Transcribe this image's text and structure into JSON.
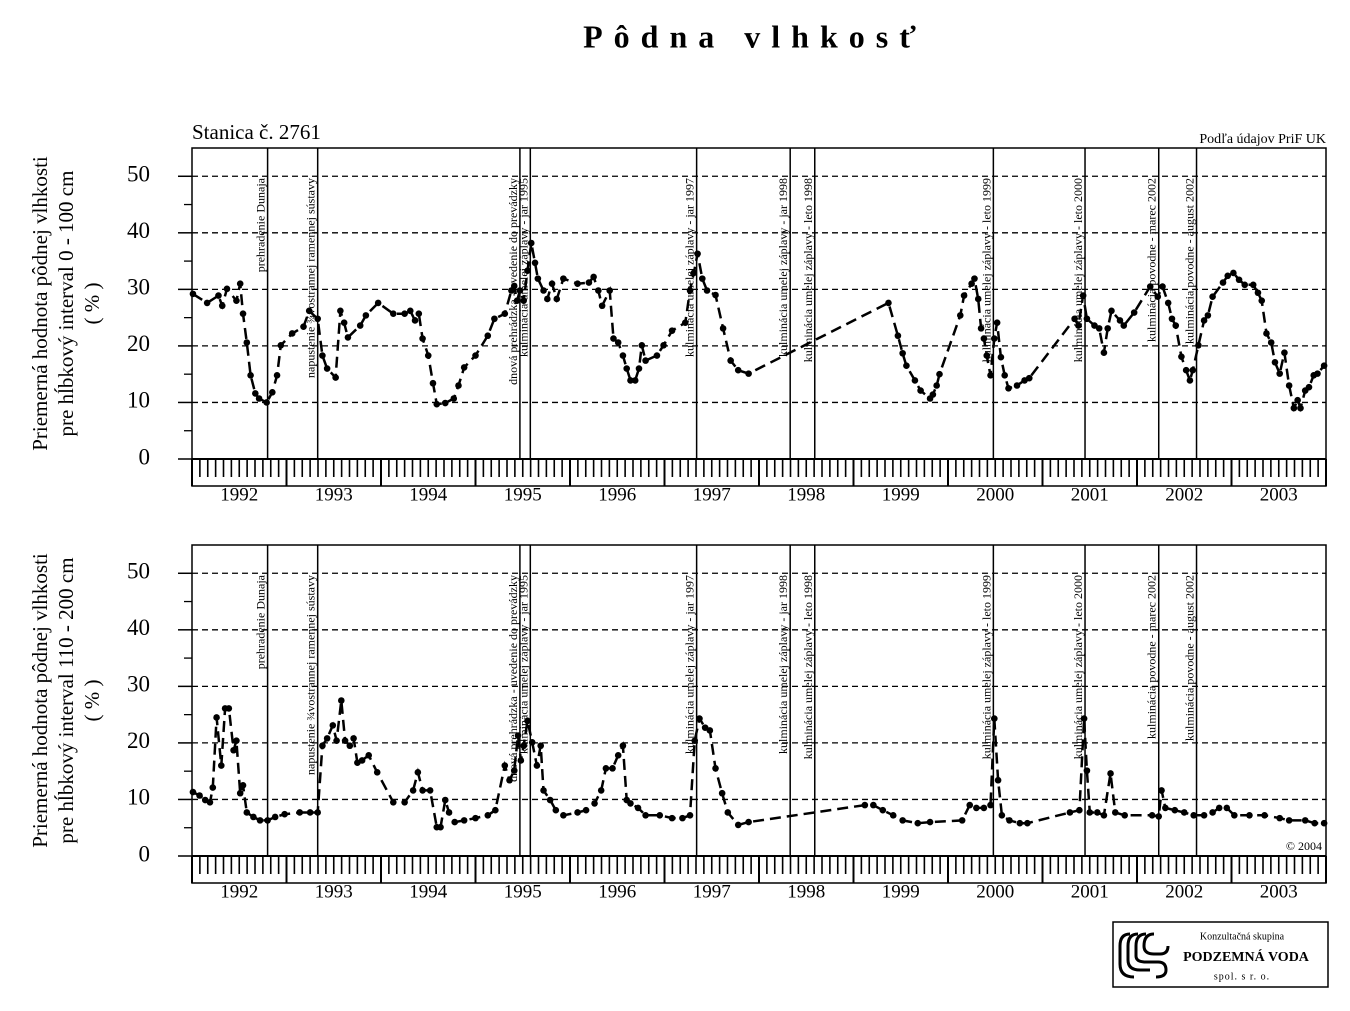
{
  "title": "Pôdna vlhkosť",
  "logo": {
    "line1": "Konzultačná skupina",
    "name": "PODZEMNÁ VODA",
    "line3": "spol. s r. o."
  },
  "chart_data": [
    {
      "type": "line",
      "subtitle": "Stanica č. 2761",
      "source": "Podľa údajov PriF UK",
      "y_label": [
        "Priemerná hodnota pôdnej vlhkosti",
        "pre hĺbkový interval 0 - 100 cm",
        "( % )"
      ],
      "xlim": [
        1992,
        2004
      ],
      "ylim": [
        0,
        55
      ],
      "yticks": [
        0,
        10,
        20,
        30,
        40,
        50
      ],
      "grid": true,
      "xticks": [
        {
          "value": 1992.5,
          "label": "1992"
        },
        {
          "value": 1993.5,
          "label": "1993"
        },
        {
          "value": 1994.5,
          "label": "1994"
        },
        {
          "value": 1995.5,
          "label": "1995"
        },
        {
          "value": 1996.5,
          "label": "1996"
        },
        {
          "value": 1997.5,
          "label": "1997"
        },
        {
          "value": 1998.5,
          "label": "1998"
        },
        {
          "value": 1999.5,
          "label": "1999"
        },
        {
          "value": 2000.5,
          "label": "2000"
        },
        {
          "value": 2001.5,
          "label": "2001"
        },
        {
          "value": 2002.5,
          "label": "2002"
        },
        {
          "value": 2003.5,
          "label": "2003"
        }
      ],
      "color": "#000000",
      "line_style": "dashed",
      "annotations": [
        {
          "x": 1992.8,
          "label": "prehradenie Dunaja"
        },
        {
          "x": 1993.33,
          "label": "napustenie ¾vostrannej ramennej sústavy"
        },
        {
          "x": 1995.47,
          "label": "dnová prehrádzka - uvedenie do prevádzky"
        },
        {
          "x": 1995.58,
          "label": "kulminácia umelej záplavy - jar 1995"
        },
        {
          "x": 1997.34,
          "label": "kulminácia umelej záplavy - jar 1997"
        },
        {
          "x": 1998.33,
          "label": "kulminácia umelej záplavy - jar 1998"
        },
        {
          "x": 1998.59,
          "label": "kulminácia umelej záplavy - leto 1998"
        },
        {
          "x": 2000.48,
          "label": "kulminácia umelej záplavy - leto 1999"
        },
        {
          "x": 2001.45,
          "label": "kulminácia umelej záplavy - leto 2000"
        },
        {
          "x": 2002.23,
          "label": "kulminácia povodne - marec 2002"
        },
        {
          "x": 2002.63,
          "label": "kulminácia povodne - august 2002"
        }
      ],
      "x": [
        1992.01,
        1992.16,
        1992.28,
        1992.32,
        1992.37,
        1992.47,
        1992.51,
        1992.54,
        1992.58,
        1992.62,
        1992.67,
        1992.71,
        1992.79,
        1992.85,
        1992.9,
        1992.94,
        1993.06,
        1993.18,
        1993.24,
        1993.33,
        1993.38,
        1993.43,
        1993.52,
        1993.57,
        1993.61,
        1993.65,
        1993.78,
        1993.84,
        1993.97,
        1994.13,
        1994.25,
        1994.31,
        1994.36,
        1994.4,
        1994.44,
        1994.5,
        1994.55,
        1994.59,
        1994.68,
        1994.77,
        1994.82,
        1994.88,
        1995.0,
        1995.13,
        1995.2,
        1995.31,
        1995.38,
        1995.41,
        1995.44,
        1995.47,
        1995.51,
        1995.55,
        1995.59,
        1995.63,
        1995.66,
        1995.72,
        1995.76,
        1995.81,
        1995.86,
        1995.93,
        1996.08,
        1996.2,
        1996.25,
        1996.3,
        1996.34,
        1996.42,
        1996.46,
        1996.51,
        1996.56,
        1996.6,
        1996.64,
        1996.69,
        1996.73,
        1996.76,
        1996.8,
        1996.92,
        1996.99,
        1997.08,
        1997.22,
        1997.27,
        1997.31,
        1997.35,
        1997.4,
        1997.45,
        1997.54,
        1997.62,
        1997.7,
        1997.78,
        1997.89,
        1999.37,
        1999.47,
        1999.52,
        1999.56,
        1999.65,
        1999.71,
        1999.81,
        1999.84,
        1999.88,
        1999.91,
        2000.13,
        2000.17,
        2000.25,
        2000.28,
        2000.32,
        2000.35,
        2000.38,
        2000.41,
        2000.45,
        2000.49,
        2000.52,
        2000.56,
        2000.6,
        2000.64,
        2000.73,
        2000.81,
        2000.86,
        2001.34,
        2001.38,
        2001.43,
        2001.47,
        2001.55,
        2001.6,
        2001.65,
        2001.69,
        2001.73,
        2001.82,
        2001.86,
        2001.97,
        2002.14,
        2002.22,
        2002.27,
        2002.33,
        2002.37,
        2002.41,
        2002.47,
        2002.52,
        2002.56,
        2002.59,
        2002.65,
        2002.71,
        2002.75,
        2002.8,
        2002.91,
        2002.96,
        2003.02,
        2003.08,
        2003.14,
        2003.23,
        2003.28,
        2003.32,
        2003.37,
        2003.42,
        2003.46,
        2003.51,
        2003.56,
        2003.61,
        2003.66,
        2003.7,
        2003.73,
        2003.78,
        2003.82,
        2003.87,
        2003.91,
        2003.98
      ],
      "values": [
        29.2,
        27.6,
        28.9,
        27.1,
        30.1,
        28.0,
        31.0,
        25.7,
        20.6,
        14.8,
        11.6,
        10.7,
        10.0,
        11.8,
        14.8,
        20.1,
        22.2,
        23.4,
        26.2,
        24.8,
        18.3,
        16.0,
        14.4,
        26.2,
        24.1,
        21.5,
        23.6,
        25.4,
        27.6,
        25.7,
        25.7,
        26.2,
        24.5,
        25.7,
        21.3,
        18.3,
        13.4,
        9.7,
        9.9,
        10.7,
        13.0,
        16.2,
        18.3,
        21.8,
        24.8,
        25.7,
        29.8,
        30.6,
        28.0,
        29.8,
        28.0,
        33.3,
        38.2,
        34.7,
        31.9,
        29.8,
        28.3,
        31.0,
        28.3,
        31.9,
        31.0,
        31.2,
        32.2,
        29.8,
        27.1,
        29.8,
        21.3,
        20.6,
        18.3,
        16.0,
        13.9,
        13.9,
        16.0,
        20.1,
        17.4,
        18.3,
        20.1,
        22.7,
        24.1,
        29.8,
        32.9,
        36.3,
        31.9,
        29.8,
        29.0,
        23.1,
        17.4,
        15.7,
        15.1,
        27.6,
        21.8,
        18.7,
        16.5,
        13.9,
        12.1,
        10.7,
        11.4,
        13.0,
        15.0,
        25.4,
        28.9,
        31.0,
        31.9,
        28.3,
        23.1,
        21.3,
        18.3,
        14.8,
        21.3,
        24.1,
        18.0,
        14.8,
        12.5,
        13.0,
        13.9,
        14.3,
        24.8,
        23.6,
        28.9,
        24.8,
        23.6,
        23.1,
        18.8,
        23.1,
        26.2,
        24.5,
        23.6,
        25.9,
        30.5,
        28.7,
        30.5,
        27.6,
        24.8,
        23.6,
        18.1,
        15.7,
        13.9,
        15.7,
        20.1,
        24.5,
        25.4,
        28.7,
        31.2,
        32.4,
        32.9,
        31.7,
        30.8,
        30.8,
        29.4,
        28.0,
        22.2,
        20.6,
        17.1,
        15.1,
        18.8,
        13.0,
        9.0,
        10.4,
        9.0,
        12.1,
        12.7,
        14.8,
        15.1,
        16.5
      ]
    },
    {
      "type": "line",
      "copyright": "© 2004",
      "y_label": [
        "Priemerná hodnota pôdnej vlhkosti",
        "pre hĺbkový interval 110 - 200 cm",
        "( % )"
      ],
      "xlim": [
        1992,
        2004
      ],
      "ylim": [
        0,
        55
      ],
      "yticks": [
        0,
        10,
        20,
        30,
        40,
        50
      ],
      "grid": true,
      "xticks": [
        {
          "value": 1992.5,
          "label": "1992"
        },
        {
          "value": 1993.5,
          "label": "1993"
        },
        {
          "value": 1994.5,
          "label": "1994"
        },
        {
          "value": 1995.5,
          "label": "1995"
        },
        {
          "value": 1996.5,
          "label": "1996"
        },
        {
          "value": 1997.5,
          "label": "1997"
        },
        {
          "value": 1998.5,
          "label": "1998"
        },
        {
          "value": 1999.5,
          "label": "1999"
        },
        {
          "value": 2000.5,
          "label": "2000"
        },
        {
          "value": 2001.5,
          "label": "2001"
        },
        {
          "value": 2002.5,
          "label": "2002"
        },
        {
          "value": 2003.5,
          "label": "2003"
        }
      ],
      "color": "#000000",
      "line_style": "dashed",
      "annotations": [
        {
          "x": 1992.8,
          "label": "prehradenie Dunaja"
        },
        {
          "x": 1993.33,
          "label": "napustenie ¾vostrannej ramennej sústavy"
        },
        {
          "x": 1995.47,
          "label": "dnová prehrádzka - uvedenie do prevádzky"
        },
        {
          "x": 1995.58,
          "label": "kulminácia umelej záplavy - jar 1995"
        },
        {
          "x": 1997.34,
          "label": "kulminácia umelej záplavy - jar 1997"
        },
        {
          "x": 1998.33,
          "label": "kulminácia umelej záplavy - jar 1998"
        },
        {
          "x": 1998.59,
          "label": "kulminácia umelej záplavy - leto 1998"
        },
        {
          "x": 2000.48,
          "label": "kulminácia umelej záplavy - leto 1999"
        },
        {
          "x": 2001.45,
          "label": "kulminácia umelej záplavy - leto 2000"
        },
        {
          "x": 2002.23,
          "label": "kulminácia povodne - marec 2002"
        },
        {
          "x": 2002.63,
          "label": "kulminácia povodne - august 2002"
        }
      ],
      "x": [
        1992.01,
        1992.08,
        1992.14,
        1992.19,
        1992.22,
        1992.26,
        1992.31,
        1992.35,
        1992.39,
        1992.44,
        1992.47,
        1992.51,
        1992.54,
        1992.58,
        1992.65,
        1992.72,
        1992.8,
        1992.88,
        1992.98,
        1993.14,
        1993.25,
        1993.33,
        1993.38,
        1993.43,
        1993.49,
        1993.53,
        1993.58,
        1993.62,
        1993.67,
        1993.71,
        1993.75,
        1993.8,
        1993.87,
        1993.96,
        1994.13,
        1994.25,
        1994.34,
        1994.39,
        1994.44,
        1994.52,
        1994.59,
        1994.63,
        1994.68,
        1994.72,
        1994.78,
        1994.88,
        1995.0,
        1995.13,
        1995.21,
        1995.31,
        1995.36,
        1995.41,
        1995.45,
        1995.48,
        1995.51,
        1995.55,
        1995.6,
        1995.65,
        1995.69,
        1995.72,
        1995.79,
        1995.85,
        1995.93,
        1996.08,
        1996.17,
        1996.26,
        1996.33,
        1996.38,
        1996.45,
        1996.51,
        1996.56,
        1996.6,
        1996.64,
        1996.72,
        1996.8,
        1996.95,
        1997.08,
        1997.19,
        1997.27,
        1997.32,
        1997.37,
        1997.43,
        1997.48,
        1997.54,
        1997.61,
        1997.67,
        1997.78,
        1997.89,
        1999.12,
        1999.21,
        1999.31,
        1999.42,
        1999.52,
        1999.68,
        1999.81,
        2000.15,
        2000.23,
        2000.3,
        2000.38,
        2000.45,
        2000.49,
        2000.53,
        2000.57,
        2000.65,
        2000.76,
        2000.84,
        2001.29,
        2001.39,
        2001.44,
        2001.47,
        2001.5,
        2001.58,
        2001.65,
        2001.72,
        2001.77,
        2001.87,
        2002.16,
        2002.23,
        2002.26,
        2002.3,
        2002.4,
        2002.5,
        2002.6,
        2002.71,
        2002.8,
        2002.87,
        2002.95,
        2003.03,
        2003.19,
        2003.35,
        2003.51,
        2003.61,
        2003.78,
        2003.88,
        2003.98
      ],
      "values": [
        11.3,
        10.7,
        9.9,
        9.5,
        12.1,
        24.5,
        16.0,
        26.1,
        26.1,
        18.7,
        20.4,
        11.1,
        12.5,
        7.7,
        6.9,
        6.3,
        6.3,
        6.9,
        7.4,
        7.7,
        7.7,
        7.7,
        19.5,
        20.8,
        23.1,
        20.4,
        27.5,
        20.4,
        19.5,
        20.8,
        16.5,
        16.9,
        17.8,
        14.8,
        9.5,
        9.5,
        11.6,
        14.8,
        11.6,
        11.6,
        5.1,
        5.1,
        9.9,
        7.7,
        6.0,
        6.3,
        6.7,
        7.2,
        8.1,
        16.0,
        13.4,
        15.1,
        21.3,
        16.9,
        19.5,
        23.9,
        20.1,
        16.0,
        19.5,
        11.6,
        9.9,
        8.1,
        7.2,
        7.7,
        8.1,
        9.3,
        11.6,
        15.5,
        15.5,
        17.8,
        19.5,
        9.9,
        9.3,
        8.5,
        7.2,
        7.2,
        6.7,
        6.7,
        7.2,
        20.4,
        24.3,
        22.7,
        22.2,
        15.5,
        11.1,
        7.7,
        5.5,
        6.0,
        9.0,
        9.0,
        8.1,
        7.2,
        6.3,
        5.8,
        6.0,
        6.3,
        9.0,
        8.5,
        8.5,
        9.0,
        24.3,
        13.4,
        7.2,
        6.3,
        5.8,
        5.8,
        7.7,
        8.1,
        24.3,
        15.1,
        7.7,
        7.7,
        7.2,
        14.6,
        7.7,
        7.2,
        7.2,
        7.0,
        11.6,
        8.5,
        8.1,
        7.7,
        7.2,
        7.2,
        7.7,
        8.5,
        8.5,
        7.2,
        7.2,
        7.2,
        6.7,
        6.3,
        6.3,
        5.8,
        5.8
      ]
    }
  ]
}
